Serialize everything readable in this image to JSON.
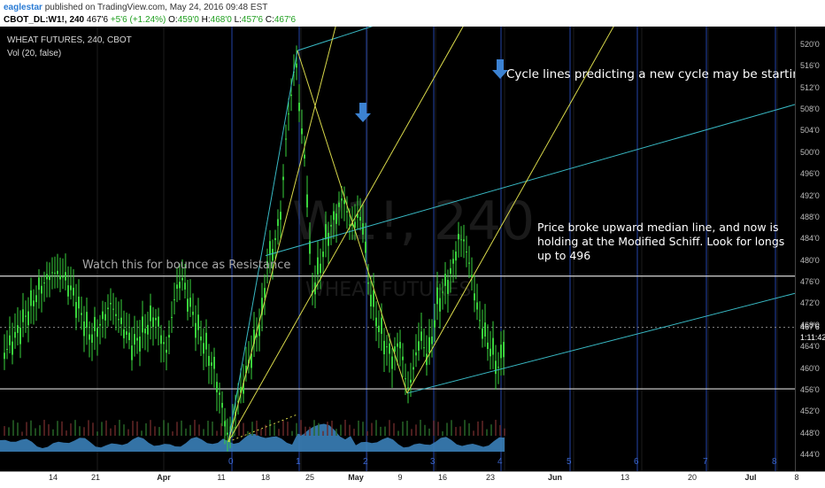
{
  "header": {
    "user": "eaglestar",
    "published": "published on TradingView.com, May 24, 2016 09:48 EST",
    "symbol": "CBOT_DL:W1!, 240",
    "last": "467'6",
    "change": "+5'6 (+1.24%)",
    "o_label": "O:",
    "o_value": "459'0",
    "h_label": "H:",
    "h_value": "468'0",
    "l_label": "L:",
    "l_value": "457'6",
    "c_label": "C:",
    "c_value": "467'6"
  },
  "chart": {
    "title": "WHEAT FUTURES, 240, CBOT",
    "volume_label": "Vol (20, false)",
    "watermark": "W1!, 240",
    "watermark_sub": "WHEAT FUTURES",
    "annotations": {
      "cycle": "Cycle lines predicting a new cycle may be starting",
      "schiff": "Price broke upward median line, and now is holding at the Modified Schiff.  Look for longs up to 496",
      "resistance": "Watch this for bounce as Resistance"
    },
    "colors": {
      "candle": "#39d23c",
      "fork_cyan": "#38b9c4",
      "fork_yellow": "#d8d84a",
      "cycle_line": "#2545a8",
      "arrow": "#3c82d2",
      "volume": "#3a7fb8"
    },
    "cycle_labels": [
      "0",
      "1",
      "2",
      "3",
      "4",
      "5",
      "6",
      "7",
      "8"
    ],
    "dashed_line_value": "457'0"
  },
  "chart_data": {
    "type": "candlestick",
    "y_axis": {
      "ticks": [
        "520'0",
        "516'0",
        "512'0",
        "508'0",
        "504'0",
        "500'0",
        "496'0",
        "492'0",
        "488'0",
        "484'0",
        "480'0",
        "476'0",
        "472'0",
        "468'0",
        "464'0",
        "460'0",
        "456'0",
        "452'0",
        "448'0",
        "444'0"
      ],
      "tick_values": [
        520,
        516,
        512,
        508,
        504,
        500,
        496,
        492,
        488,
        484,
        480,
        476,
        472,
        468,
        464,
        460,
        456,
        452,
        448,
        444
      ],
      "last_price_label": "467'6",
      "countdown_label": "1:11:42",
      "ylim": [
        442.5,
        522.5
      ]
    },
    "x_axis": {
      "labels": [
        "14",
        "21",
        "Apr",
        "11",
        "18",
        "25",
        "May",
        "9",
        "16",
        "23",
        "Jun",
        "13",
        "20",
        "Jul",
        "8"
      ],
      "bold_labels": [
        "Apr",
        "May",
        "Jun",
        "Jul"
      ]
    },
    "horizontal_levels": [
      {
        "value": 477.2,
        "color": "#d8d8d8"
      },
      {
        "value": 456.3,
        "color": "#d8d8d8"
      }
    ]
  }
}
